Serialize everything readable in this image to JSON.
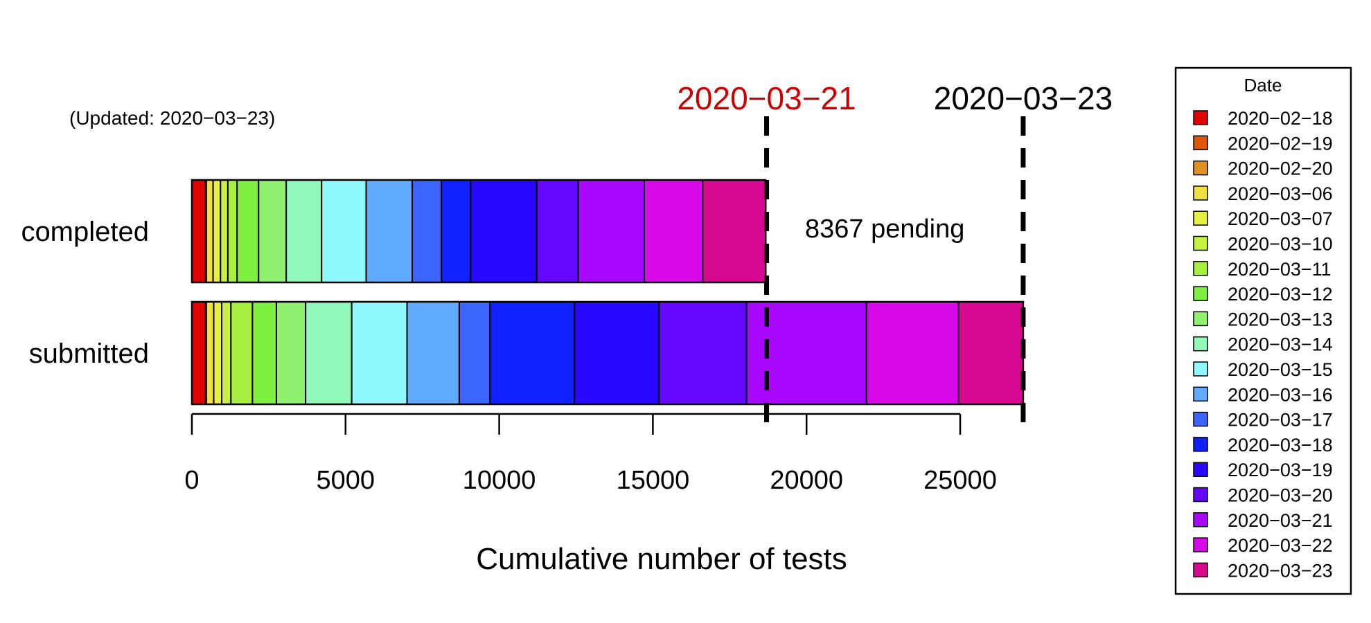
{
  "chart_data": {
    "type": "bar",
    "orientation": "horizontal",
    "stacked": true,
    "title": "",
    "xlabel": "Cumulative number of tests",
    "ylabel": "",
    "xlim": [
      0,
      27500
    ],
    "x_ticks": [
      0,
      5000,
      10000,
      15000,
      20000,
      25000
    ],
    "categories": [
      "completed",
      "submitted"
    ],
    "updated_note": "(Updated: 2020−03−23)",
    "legend": {
      "title": "Date",
      "position": "right"
    },
    "series": [
      {
        "name": "2020−02−18",
        "color": "#e00000",
        "values": [
          430,
          430
        ]
      },
      {
        "name": "2020−02−19",
        "color": "#e05500",
        "values": [
          20,
          20
        ]
      },
      {
        "name": "2020−02−20",
        "color": "#e09020",
        "values": [
          20,
          20
        ]
      },
      {
        "name": "2020−03−06",
        "color": "#f0e040",
        "values": [
          220,
          240
        ]
      },
      {
        "name": "2020−03−07",
        "color": "#e6f040",
        "values": [
          240,
          260
        ]
      },
      {
        "name": "2020−03−10",
        "color": "#c8f040",
        "values": [
          240,
          300
        ]
      },
      {
        "name": "2020−03−11",
        "color": "#a8f040",
        "values": [
          300,
          700
        ]
      },
      {
        "name": "2020−03−12",
        "color": "#80f040",
        "values": [
          700,
          780
        ]
      },
      {
        "name": "2020−03−13",
        "color": "#90f070",
        "values": [
          900,
          950
        ]
      },
      {
        "name": "2020−03−14",
        "color": "#90f8b8",
        "values": [
          1150,
          1500
        ]
      },
      {
        "name": "2020−03−15",
        "color": "#90f8ff",
        "values": [
          1450,
          1800
        ]
      },
      {
        "name": "2020−03−16",
        "color": "#60aaff",
        "values": [
          1500,
          1700
        ]
      },
      {
        "name": "2020−03−17",
        "color": "#3c64ff",
        "values": [
          950,
          1000
        ]
      },
      {
        "name": "2020−03−18",
        "color": "#1020ff",
        "values": [
          950,
          2750
        ]
      },
      {
        "name": "2020−03−19",
        "color": "#2808ff",
        "values": [
          2150,
          2750
        ]
      },
      {
        "name": "2020−03−20",
        "color": "#6408ff",
        "values": [
          1350,
          2850
        ]
      },
      {
        "name": "2020−03−21",
        "color": "#a808ff",
        "values": [
          2150,
          3900
        ]
      },
      {
        "name": "2020−03−22",
        "color": "#d808e8",
        "values": [
          1900,
          3000
        ]
      },
      {
        "name": "2020−03−23",
        "color": "#d80890",
        "values": [
          2050,
          2100
        ]
      }
    ],
    "reference_lines": [
      {
        "label": "2020−03−21",
        "x": 18700,
        "color": "#cc0000"
      },
      {
        "label": "2020−03−23",
        "x": 27050,
        "color": "#000000"
      }
    ],
    "annotation": "8367 pending"
  }
}
